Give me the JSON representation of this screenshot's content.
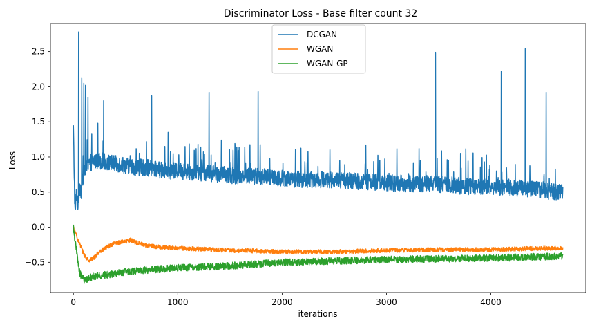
{
  "chart_data": {
    "type": "line",
    "title": "Discriminator Loss - Base filter count 32",
    "xlabel": "iterations",
    "ylabel": "Loss",
    "xlim": [
      -220,
      4910
    ],
    "ylim": [
      -0.93,
      2.9
    ],
    "x_ticks": [
      0,
      1000,
      2000,
      3000,
      4000
    ],
    "y_ticks": [
      -0.5,
      0.0,
      0.5,
      1.0,
      1.5,
      2.0,
      2.5
    ],
    "x_tick_labels": [
      "0",
      "1000",
      "2000",
      "3000",
      "4000"
    ],
    "y_tick_labels": [
      "−0.5",
      "0.0",
      "0.5",
      "1.0",
      "1.5",
      "2.0",
      "2.5"
    ],
    "grid": false,
    "legend_position": "top-center",
    "series": [
      {
        "name": "DCGAN",
        "color": "#1f77b4",
        "x": [
          0,
          15,
          30,
          45,
          60,
          75,
          90,
          110,
          130,
          150,
          200,
          250,
          300,
          350,
          400,
          450,
          500,
          600,
          700,
          800,
          900,
          1000,
          1200,
          1400,
          1600,
          1800,
          2000,
          2200,
          2400,
          2600,
          2800,
          3000,
          3200,
          3400,
          3600,
          3800,
          4000,
          4200,
          4400,
          4600,
          4690
        ],
        "values": [
          1.4,
          0.2,
          0.5,
          0.3,
          0.6,
          0.5,
          0.7,
          0.8,
          0.85,
          0.9,
          0.95,
          0.95,
          0.93,
          0.92,
          0.9,
          0.9,
          0.88,
          0.85,
          0.85,
          0.82,
          0.8,
          0.8,
          0.78,
          0.75,
          0.73,
          0.72,
          0.7,
          0.68,
          0.68,
          0.66,
          0.65,
          0.63,
          0.62,
          0.62,
          0.6,
          0.58,
          0.58,
          0.55,
          0.55,
          0.5,
          0.5
        ],
        "noise": 0.12,
        "spikes": [
          {
            "x": 50,
            "y": 2.78
          },
          {
            "x": 80,
            "y": 2.12
          },
          {
            "x": 100,
            "y": 2.05
          },
          {
            "x": 115,
            "y": 2.02
          },
          {
            "x": 140,
            "y": 1.85
          },
          {
            "x": 290,
            "y": 1.8
          },
          {
            "x": 750,
            "y": 1.87
          },
          {
            "x": 1300,
            "y": 1.92
          },
          {
            "x": 1770,
            "y": 1.93
          },
          {
            "x": 3470,
            "y": 2.49
          },
          {
            "x": 4100,
            "y": 2.22
          },
          {
            "x": 4330,
            "y": 2.54
          },
          {
            "x": 4530,
            "y": 1.92
          }
        ]
      },
      {
        "name": "WGAN",
        "color": "#ff7f0e",
        "x": [
          0,
          50,
          100,
          130,
          160,
          200,
          250,
          300,
          400,
          500,
          550,
          600,
          700,
          800,
          1000,
          1200,
          1500,
          1800,
          2000,
          2200,
          2500,
          3000,
          3500,
          4000,
          4500,
          4690
        ],
        "values": [
          -0.01,
          -0.2,
          -0.38,
          -0.45,
          -0.47,
          -0.43,
          -0.35,
          -0.3,
          -0.23,
          -0.2,
          -0.18,
          -0.22,
          -0.26,
          -0.28,
          -0.3,
          -0.31,
          -0.33,
          -0.34,
          -0.35,
          -0.35,
          -0.35,
          -0.33,
          -0.32,
          -0.32,
          -0.3,
          -0.3
        ],
        "noise": 0.03
      },
      {
        "name": "WGAN-GP",
        "color": "#2ca02c",
        "x": [
          0,
          30,
          60,
          90,
          120,
          150,
          200,
          300,
          400,
          600,
          800,
          1000,
          1500,
          2000,
          2500,
          3000,
          3500,
          4000,
          4500,
          4690
        ],
        "values": [
          0.0,
          -0.35,
          -0.65,
          -0.73,
          -0.75,
          -0.72,
          -0.7,
          -0.68,
          -0.66,
          -0.62,
          -0.6,
          -0.58,
          -0.55,
          -0.5,
          -0.48,
          -0.46,
          -0.45,
          -0.44,
          -0.42,
          -0.41
        ],
        "noise": 0.05
      }
    ]
  }
}
